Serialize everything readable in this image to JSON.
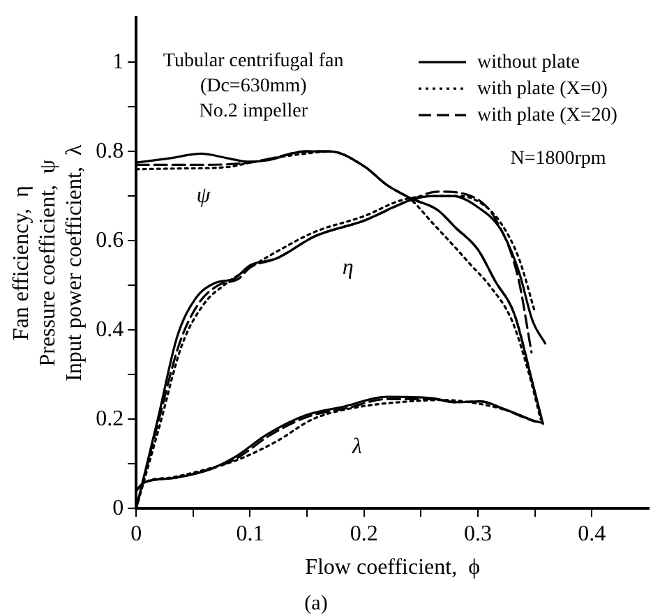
{
  "chart_data": {
    "type": "line",
    "xlabel": "Flow coefficient,  ϕ",
    "ylabel": "Fan efficiency,  η\nPressure coefficient,  ψ\nInput power coefficient,  λ",
    "xlim": [
      0,
      0.45
    ],
    "ylim": [
      0,
      1.1
    ],
    "xticks": [
      0,
      {
        "value": 0.05,
        "label": null
      },
      0.1,
      {
        "value": 0.15,
        "label": null
      },
      0.2,
      {
        "value": 0.25,
        "label": null
      },
      0.3,
      {
        "value": 0.35,
        "label": null
      },
      0.4
    ],
    "yticks": [
      0,
      {
        "value": 0.1,
        "label": null
      },
      0.2,
      {
        "value": 0.3,
        "label": null
      },
      0.4,
      {
        "value": 0.5,
        "label": null
      },
      0.6,
      {
        "value": 0.7,
        "label": null
      },
      0.8,
      {
        "value": 0.9,
        "label": null
      },
      1
    ],
    "grid": false,
    "legend": "top right",
    "marker": "none",
    "series": [
      {
        "name": "without plate",
        "color": "#000000",
        "line_style": "solid",
        "x": [
          0,
          0.03,
          0.057,
          0.08,
          0.098,
          0.115,
          0.148,
          0.17,
          0.2,
          0.22,
          0.242,
          0.265,
          0.28,
          0.3,
          0.315,
          0.332,
          0.348,
          0.357
        ],
        "values": [
          0.775,
          0.785,
          0.795,
          0.785,
          0.777,
          0.78,
          0.8,
          0.8,
          0.767,
          0.725,
          0.694,
          0.668,
          0.63,
          0.58,
          0.51,
          0.435,
          0.28,
          0.19
        ]
      },
      {
        "name": "with plate (X=0)",
        "color": "#000000",
        "line_style": "dotted",
        "x": [
          0,
          0.04,
          0.08,
          0.1,
          0.12,
          0.148,
          0.17,
          0.2,
          0.22,
          0.242,
          0.26,
          0.28,
          0.294,
          0.31,
          0.33,
          0.345,
          0.355
        ],
        "values": [
          0.76,
          0.762,
          0.765,
          0.775,
          0.785,
          0.795,
          0.8,
          0.767,
          0.725,
          0.69,
          0.64,
          0.585,
          0.545,
          0.5,
          0.42,
          0.3,
          0.2
        ]
      },
      {
        "name": "with plate (X=20)",
        "color": "#000000",
        "line_style": "dashed",
        "x": [
          0,
          0.05,
          0.1,
          0.12,
          0.148,
          0.17,
          0.2,
          0.22,
          0.242,
          0.265,
          0.28,
          0.3,
          0.315,
          0.332,
          0.348,
          0.357
        ],
        "values": [
          0.77,
          0.77,
          0.775,
          0.785,
          0.8,
          0.8,
          0.767,
          0.725,
          0.694,
          0.668,
          0.63,
          0.58,
          0.51,
          0.435,
          0.28,
          0.19
        ]
      },
      {
        "color": "#000000",
        "line_style": "solid",
        "x": [
          0,
          0.019,
          0.036,
          0.052,
          0.069,
          0.086,
          0.1,
          0.123,
          0.157,
          0.2,
          0.24,
          0.26,
          0.278,
          0.3,
          0.32,
          0.336,
          0.348,
          0.359
        ],
        "values": [
          0,
          0.2,
          0.385,
          0.47,
          0.505,
          0.515,
          0.545,
          0.56,
          0.61,
          0.645,
          0.69,
          0.7,
          0.7,
          0.675,
          0.625,
          0.53,
          0.42,
          0.37
        ]
      },
      {
        "color": "#000000",
        "line_style": "dotted",
        "x": [
          0,
          0.02,
          0.04,
          0.06,
          0.077,
          0.1,
          0.123,
          0.157,
          0.2,
          0.232,
          0.26,
          0.285,
          0.305,
          0.32,
          0.336,
          0.35
        ],
        "values": [
          0,
          0.18,
          0.365,
          0.46,
          0.5,
          0.54,
          0.575,
          0.62,
          0.655,
          0.69,
          0.7,
          0.7,
          0.68,
          0.64,
          0.56,
          0.44
        ]
      },
      {
        "color": "#000000",
        "line_style": "dashed",
        "x": [
          0,
          0.02,
          0.038,
          0.055,
          0.072,
          0.09,
          0.1,
          0.123,
          0.157,
          0.2,
          0.24,
          0.265,
          0.294,
          0.315,
          0.335,
          0.347
        ],
        "values": [
          0,
          0.2,
          0.37,
          0.46,
          0.5,
          0.515,
          0.54,
          0.56,
          0.61,
          0.645,
          0.69,
          0.71,
          0.7,
          0.65,
          0.52,
          0.35
        ]
      },
      {
        "color": "#000000",
        "line_style": "solid",
        "x": [
          0,
          0.007,
          0.032,
          0.065,
          0.086,
          0.115,
          0.148,
          0.182,
          0.22,
          0.26,
          0.28,
          0.302,
          0.323,
          0.348
        ],
        "values": [
          0.04,
          0.058,
          0.068,
          0.088,
          0.114,
          0.166,
          0.208,
          0.228,
          0.25,
          0.247,
          0.238,
          0.24,
          0.223,
          0.197
        ]
      },
      {
        "color": "#000000",
        "line_style": "dotted",
        "x": [
          0,
          0.007,
          0.032,
          0.065,
          0.09,
          0.123,
          0.155,
          0.19,
          0.24,
          0.27,
          0.3,
          0.325,
          0.35
        ],
        "values": [
          0.04,
          0.058,
          0.07,
          0.09,
          0.11,
          0.15,
          0.2,
          0.225,
          0.24,
          0.243,
          0.235,
          0.22,
          0.195
        ]
      },
      {
        "color": "#000000",
        "line_style": "dashed",
        "x": [
          0,
          0.007,
          0.032,
          0.065,
          0.088,
          0.118,
          0.15,
          0.185,
          0.22,
          0.26,
          0.28,
          0.302,
          0.323,
          0.348,
          0.36
        ],
        "values": [
          0.04,
          0.058,
          0.068,
          0.088,
          0.112,
          0.165,
          0.205,
          0.225,
          0.245,
          0.245,
          0.238,
          0.24,
          0.222,
          0.197,
          0.19
        ]
      }
    ],
    "annotations": [
      "Tubular centrifugal fan",
      "(Dc=630mm)",
      "No.2 impeller",
      "N=1800rpm",
      "(a)",
      "ψ",
      "η",
      "λ"
    ]
  }
}
